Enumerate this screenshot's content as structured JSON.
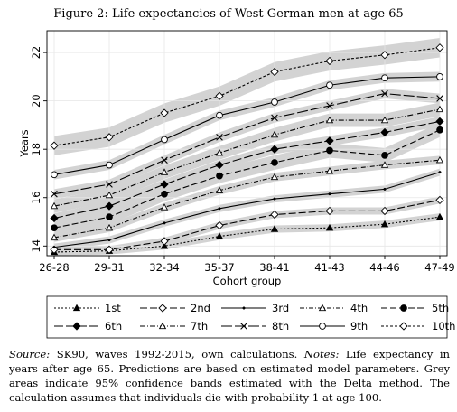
{
  "title": "Figure 2: Life expectancies of West German men at age 65",
  "caption": {
    "source_label": "Source:",
    "source_text": " SK90, waves 1992-2015, own calculations. ",
    "notes_label": "Notes:",
    "notes_text": " Life expectancy in years after age 65. Predictions are based on estimated model parameters. Grey areas indicate 95% confidence bands estimated with the Delta method. The calculation assumes that individuals die with probability 1 at age 100."
  },
  "chart_data": {
    "type": "line",
    "title": "Figure 2: Life expectancies of West German men at age 65",
    "xlabel": "Cohort group",
    "ylabel": "Years",
    "categories": [
      "26-28",
      "29-31",
      "32-34",
      "35-37",
      "38-41",
      "41-43",
      "44-46",
      "47-49"
    ],
    "yticks": [
      14,
      16,
      18,
      20,
      22
    ],
    "ylim": [
      13.6,
      22.9
    ],
    "grid": true,
    "legend_position": "bottom",
    "band_color": "#d3d3d3",
    "series": [
      {
        "name": "1st",
        "values": [
          13.75,
          13.8,
          14.0,
          14.4,
          14.7,
          14.75,
          14.9,
          15.2
        ],
        "marker": "triangle-filled",
        "dash": "2,2",
        "band": 0.15
      },
      {
        "name": "2nd",
        "values": [
          13.85,
          13.85,
          14.2,
          14.85,
          15.3,
          15.45,
          15.45,
          15.9
        ],
        "marker": "diamond-open",
        "dash": "8,3",
        "band": 0.15
      },
      {
        "name": "3rd",
        "values": [
          13.95,
          14.25,
          14.95,
          15.55,
          15.95,
          16.15,
          16.35,
          17.05
        ],
        "marker": "dot-small",
        "dash": "",
        "band": 0.15
      },
      {
        "name": "4th",
        "values": [
          14.35,
          14.75,
          15.6,
          16.3,
          16.85,
          17.1,
          17.35,
          17.55
        ],
        "marker": "triangle-open",
        "dash": "5,2,1,2",
        "band": 0.18
      },
      {
        "name": "5th",
        "values": [
          14.75,
          15.2,
          16.15,
          16.9,
          17.45,
          17.95,
          17.75,
          18.8
        ],
        "marker": "circle-filled",
        "dash": "7,3",
        "band": 0.3
      },
      {
        "name": "6th",
        "values": [
          15.15,
          15.65,
          16.55,
          17.35,
          18.0,
          18.35,
          18.7,
          19.15
        ],
        "marker": "diamond-filled",
        "dash": "10,3",
        "band": 0.2
      },
      {
        "name": "7th",
        "values": [
          15.65,
          16.1,
          17.05,
          17.85,
          18.6,
          19.2,
          19.2,
          19.65
        ],
        "marker": "triangle-open",
        "dash": "6,2,1,2",
        "band": 0.28
      },
      {
        "name": "8th",
        "values": [
          16.15,
          16.55,
          17.55,
          18.5,
          19.3,
          19.8,
          20.3,
          20.1
        ],
        "marker": "x",
        "dash": "12,3",
        "band": 0.2
      },
      {
        "name": "9th",
        "values": [
          16.95,
          17.35,
          18.4,
          19.4,
          19.95,
          20.65,
          20.95,
          21.0
        ],
        "marker": "circle-open",
        "dash": "",
        "band": 0.2
      },
      {
        "name": "10th",
        "values": [
          18.15,
          18.5,
          19.5,
          20.2,
          21.2,
          21.65,
          21.9,
          22.2
        ],
        "marker": "diamond-open",
        "dash": "3,2",
        "band": 0.4
      }
    ]
  }
}
